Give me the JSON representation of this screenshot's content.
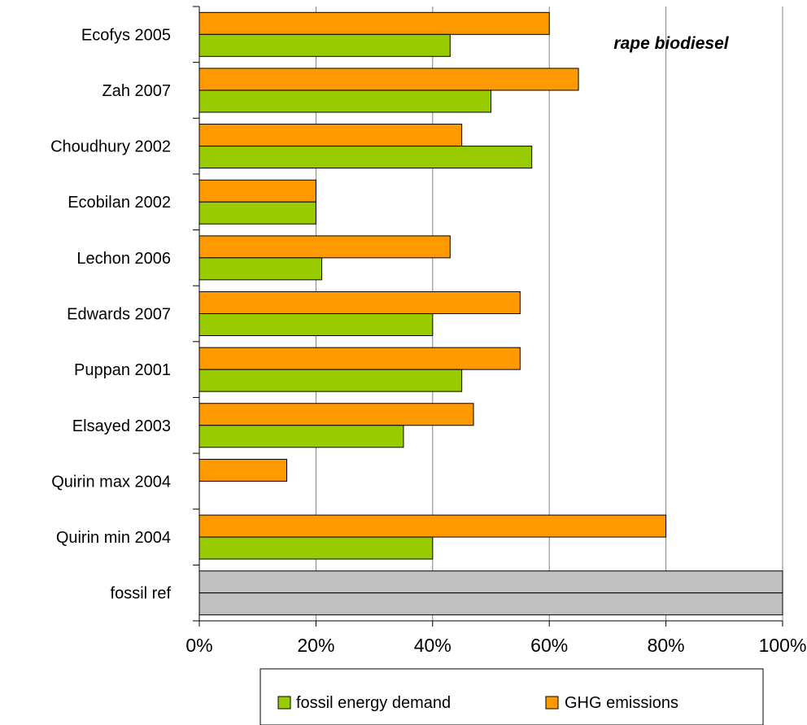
{
  "chart_data": {
    "type": "bar",
    "orientation": "horizontal",
    "annotation": "rape biodiesel",
    "categories": [
      "Ecofys 2005",
      "Zah 2007",
      "Choudhury 2002",
      "Ecobilan 2002",
      "Lechon 2006",
      "Edwards 2007",
      "Puppan 2001",
      "Elsayed 2003",
      "Quirin max 2004",
      "Quirin min 2004",
      "fossil ref"
    ],
    "series": [
      {
        "name": "GHG emissions",
        "color": "#ff9900",
        "values": [
          60,
          65,
          45,
          20,
          43,
          55,
          55,
          47,
          15,
          80,
          100
        ]
      },
      {
        "name": "fossil energy demand",
        "color": "#99cc00",
        "values": [
          43,
          50,
          57,
          20,
          21,
          40,
          45,
          35,
          null,
          40,
          100
        ]
      }
    ],
    "reference_color": "#c0c0c0",
    "xlim": [
      0,
      100
    ],
    "x_ticks": [
      "0%",
      "20%",
      "40%",
      "60%",
      "80%",
      "100%"
    ],
    "grid": "vertical",
    "legend": {
      "placement": "bottom",
      "items": [
        "fossil energy demand",
        "GHG emissions"
      ]
    }
  }
}
